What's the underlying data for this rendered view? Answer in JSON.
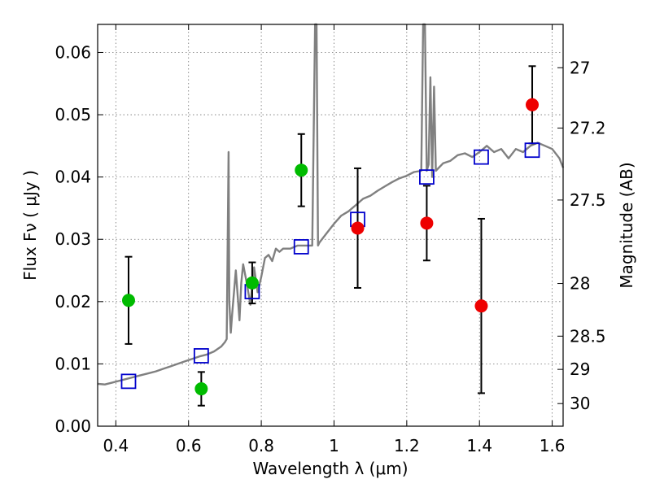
{
  "chart_data": {
    "type": "scatter",
    "xlabel": "Wavelength  λ (μm)",
    "ylabel": "Flux  Fν  ( μJy )",
    "ylabel_right": "Magnitude (AB)",
    "xlim": [
      0.35,
      1.63
    ],
    "ylim": [
      0.0,
      0.0645
    ],
    "grid": true,
    "x_ticks": [
      {
        "value": 0.4,
        "label": "0.4"
      },
      {
        "value": 0.6,
        "label": "0.6"
      },
      {
        "value": 0.8,
        "label": "0.8"
      },
      {
        "value": 1.0,
        "label": "1"
      },
      {
        "value": 1.2,
        "label": "1.2"
      },
      {
        "value": 1.4,
        "label": "1.4"
      },
      {
        "value": 1.6,
        "label": "1.6"
      }
    ],
    "y_ticks": [
      {
        "value": 0.0,
        "label": "0.00"
      },
      {
        "value": 0.01,
        "label": "0.01"
      },
      {
        "value": 0.02,
        "label": "0.02"
      },
      {
        "value": 0.03,
        "label": "0.03"
      },
      {
        "value": 0.04,
        "label": "0.04"
      },
      {
        "value": 0.05,
        "label": "0.05"
      },
      {
        "value": 0.06,
        "label": "0.06"
      }
    ],
    "mag_ticks": [
      {
        "value": 27.0,
        "label": "27"
      },
      {
        "value": 27.2,
        "label": "27.2"
      },
      {
        "value": 27.5,
        "label": "27.5"
      },
      {
        "value": 28.0,
        "label": "28"
      },
      {
        "value": 28.5,
        "label": "28.5"
      },
      {
        "value": 29.0,
        "label": "29"
      },
      {
        "value": 30.0,
        "label": "30"
      }
    ],
    "colors": {
      "spectrum": "#808080",
      "model": "#0000cc",
      "green": "#00bb00",
      "red": "#ee0000",
      "errorbar": "#000000"
    },
    "spectrum": {
      "x": [
        0.35,
        0.37,
        0.39,
        0.41,
        0.43,
        0.45,
        0.47,
        0.49,
        0.51,
        0.53,
        0.55,
        0.57,
        0.59,
        0.61,
        0.63,
        0.65,
        0.67,
        0.69,
        0.7,
        0.705,
        0.71,
        0.712,
        0.716,
        0.72,
        0.73,
        0.74,
        0.745,
        0.75,
        0.76,
        0.77,
        0.78,
        0.79,
        0.8,
        0.81,
        0.82,
        0.83,
        0.84,
        0.85,
        0.86,
        0.88,
        0.9,
        0.92,
        0.94,
        0.948,
        0.952,
        0.956,
        0.96,
        0.98,
        1.0,
        1.02,
        1.04,
        1.06,
        1.08,
        1.1,
        1.12,
        1.14,
        1.16,
        1.18,
        1.2,
        1.22,
        1.24,
        1.245,
        1.25,
        1.255,
        1.26,
        1.265,
        1.27,
        1.275,
        1.28,
        1.3,
        1.32,
        1.34,
        1.36,
        1.38,
        1.4,
        1.42,
        1.44,
        1.46,
        1.48,
        1.5,
        1.52,
        1.54,
        1.56,
        1.58,
        1.6,
        1.62,
        1.63
      ],
      "y": [
        0.0068,
        0.0067,
        0.007,
        0.0073,
        0.0076,
        0.0079,
        0.0082,
        0.0085,
        0.0088,
        0.0092,
        0.0096,
        0.01,
        0.0104,
        0.0108,
        0.0112,
        0.0115,
        0.012,
        0.0128,
        0.0135,
        0.014,
        0.044,
        0.02,
        0.015,
        0.018,
        0.025,
        0.017,
        0.023,
        0.026,
        0.023,
        0.0195,
        0.0255,
        0.0215,
        0.024,
        0.027,
        0.0275,
        0.0265,
        0.0285,
        0.028,
        0.0285,
        0.0285,
        0.029,
        0.029,
        0.029,
        0.065,
        0.065,
        0.029,
        0.0295,
        0.031,
        0.0325,
        0.0338,
        0.0345,
        0.0355,
        0.0365,
        0.037,
        0.0378,
        0.0385,
        0.0392,
        0.0398,
        0.0402,
        0.0408,
        0.041,
        0.065,
        0.065,
        0.041,
        0.042,
        0.056,
        0.04,
        0.0545,
        0.041,
        0.0422,
        0.0426,
        0.0435,
        0.0438,
        0.0432,
        0.044,
        0.045,
        0.044,
        0.0445,
        0.043,
        0.0445,
        0.044,
        0.045,
        0.0455,
        0.045,
        0.0445,
        0.043,
        0.0415
      ]
    },
    "series": [
      {
        "x": [
          0.435,
          0.635,
          0.775,
          0.91,
          1.065,
          1.255,
          1.405,
          1.545
        ],
        "values": [
          0.0072,
          0.0113,
          0.0216,
          0.0288,
          0.0332,
          0.04,
          0.0432,
          0.0443
        ]
      },
      {
        "x": [
          0.435,
          0.635,
          0.775,
          0.91
        ],
        "values": [
          0.0202,
          0.006,
          0.023,
          0.0411
        ],
        "err": [
          0.007,
          0.0027,
          0.0033,
          0.0058
        ]
      },
      {
        "x": [
          1.065,
          1.255,
          1.405,
          1.545
        ],
        "values": [
          0.0318,
          0.0326,
          0.0193,
          0.0516
        ],
        "err": [
          0.0096,
          0.006,
          0.014,
          0.0062
        ]
      }
    ]
  }
}
